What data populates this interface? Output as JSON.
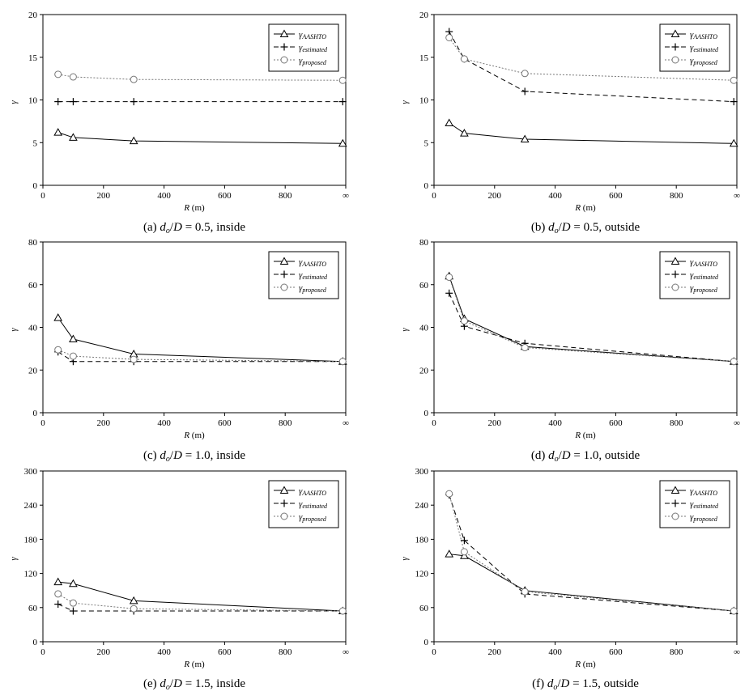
{
  "legend_entries": [
    {
      "base": "γ",
      "sub": "AASHTO"
    },
    {
      "base": "γ",
      "sub": "estimated"
    },
    {
      "base": "γ",
      "sub": "proposed"
    }
  ],
  "chart_data": [
    {
      "type": "line",
      "caption": {
        "prefix": "(a) ",
        "var1": "d",
        "sub": "o",
        "slash": "/",
        "var2": "D",
        "rest": " = 0.5, inside"
      },
      "xlabel": "R (m)",
      "ylabel": "γ",
      "xlim": [
        0,
        1000
      ],
      "ylim": [
        0,
        20
      ],
      "xticks": [
        "0",
        "200",
        "400",
        "600",
        "800",
        "∞"
      ],
      "yticks": [
        0,
        5,
        10,
        15,
        20
      ],
      "legend": "top-right",
      "grid": false,
      "x": [
        50,
        100,
        300,
        990
      ],
      "series": [
        {
          "name": "γAASHTO",
          "values": [
            6.2,
            5.6,
            5.2,
            4.9
          ]
        },
        {
          "name": "γestimated",
          "values": [
            9.8,
            9.8,
            9.8,
            9.8
          ]
        },
        {
          "name": "γproposed",
          "values": [
            13.0,
            12.7,
            12.4,
            12.3
          ]
        }
      ]
    },
    {
      "type": "line",
      "caption": {
        "prefix": "(b) ",
        "var1": "d",
        "sub": "o",
        "slash": "/",
        "var2": "D",
        "rest": " = 0.5, outside"
      },
      "xlabel": "R (m)",
      "ylabel": "γ",
      "xlim": [
        0,
        1000
      ],
      "ylim": [
        0,
        20
      ],
      "xticks": [
        "0",
        "200",
        "400",
        "600",
        "800",
        "∞"
      ],
      "yticks": [
        0,
        5,
        10,
        15,
        20
      ],
      "legend": "top-right",
      "grid": false,
      "x": [
        50,
        100,
        300,
        990
      ],
      "series": [
        {
          "name": "γAASHTO",
          "values": [
            7.3,
            6.1,
            5.4,
            4.9
          ]
        },
        {
          "name": "γestimated",
          "values": [
            18.0,
            14.8,
            11.0,
            9.8
          ]
        },
        {
          "name": "γproposed",
          "values": [
            17.3,
            14.8,
            13.1,
            12.3
          ]
        }
      ]
    },
    {
      "type": "line",
      "caption": {
        "prefix": "(c) ",
        "var1": "d",
        "sub": "o",
        "slash": "/",
        "var2": "D",
        "rest": " = 1.0, inside"
      },
      "xlabel": "R (m)",
      "ylabel": "γ",
      "xlim": [
        0,
        1000
      ],
      "ylim": [
        0,
        80
      ],
      "xticks": [
        "0",
        "200",
        "400",
        "600",
        "800",
        "∞"
      ],
      "yticks": [
        0,
        20,
        40,
        60,
        80
      ],
      "legend": "top-right",
      "grid": false,
      "x": [
        50,
        100,
        300,
        990
      ],
      "series": [
        {
          "name": "γAASHTO",
          "values": [
            44.5,
            34.5,
            27.5,
            24.0
          ]
        },
        {
          "name": "γestimated",
          "values": [
            28.5,
            24.0,
            24.0,
            24.0
          ]
        },
        {
          "name": "γproposed",
          "values": [
            29.5,
            26.5,
            25.0,
            24.0
          ]
        }
      ]
    },
    {
      "type": "line",
      "caption": {
        "prefix": "(d) ",
        "var1": "d",
        "sub": "o",
        "slash": "/",
        "var2": "D",
        "rest": " = 1.0, outside"
      },
      "xlabel": "R (m)",
      "ylabel": "γ",
      "xlim": [
        0,
        1000
      ],
      "ylim": [
        0,
        80
      ],
      "xticks": [
        "0",
        "200",
        "400",
        "600",
        "800",
        "∞"
      ],
      "yticks": [
        0,
        20,
        40,
        60,
        80
      ],
      "legend": "top-right",
      "grid": false,
      "x": [
        50,
        100,
        300,
        990
      ],
      "series": [
        {
          "name": "γAASHTO",
          "values": [
            64.0,
            44.0,
            31.0,
            24.0
          ]
        },
        {
          "name": "γestimated",
          "values": [
            56.0,
            40.5,
            32.5,
            24.0
          ]
        },
        {
          "name": "γproposed",
          "values": [
            63.5,
            43.0,
            30.5,
            24.0
          ]
        }
      ]
    },
    {
      "type": "line",
      "caption": {
        "prefix": "(e) ",
        "var1": "d",
        "sub": "o",
        "slash": "/",
        "var2": "D",
        "rest": " = 1.5, inside"
      },
      "xlabel": "R (m)",
      "ylabel": "γ",
      "xlim": [
        0,
        1000
      ],
      "ylim": [
        0,
        300
      ],
      "xticks": [
        "0",
        "200",
        "400",
        "600",
        "800",
        "∞"
      ],
      "yticks": [
        0,
        60,
        120,
        180,
        240,
        300
      ],
      "legend": "top-right",
      "grid": false,
      "x": [
        50,
        100,
        300,
        990
      ],
      "series": [
        {
          "name": "γAASHTO",
          "values": [
            105,
            102,
            72,
            54
          ]
        },
        {
          "name": "γestimated",
          "values": [
            66,
            54,
            54,
            54
          ]
        },
        {
          "name": "γproposed",
          "values": [
            84,
            68,
            58,
            54
          ]
        }
      ]
    },
    {
      "type": "line",
      "caption": {
        "prefix": "(f) ",
        "var1": "d",
        "sub": "o",
        "slash": "/",
        "var2": "D",
        "rest": " = 1.5, outside"
      },
      "xlabel": "R (m)",
      "ylabel": "γ",
      "xlim": [
        0,
        1000
      ],
      "ylim": [
        0,
        300
      ],
      "xticks": [
        "0",
        "200",
        "400",
        "600",
        "800",
        "∞"
      ],
      "yticks": [
        0,
        60,
        120,
        180,
        240,
        300
      ],
      "legend": "top-right",
      "grid": false,
      "x": [
        50,
        100,
        300,
        990
      ],
      "series": [
        {
          "name": "γAASHTO",
          "values": [
            154,
            151,
            90,
            54
          ]
        },
        {
          "name": "γestimated",
          "values": [
            258,
            178,
            84,
            54
          ]
        },
        {
          "name": "γproposed",
          "values": [
            260,
            158,
            88,
            54
          ]
        }
      ]
    }
  ]
}
